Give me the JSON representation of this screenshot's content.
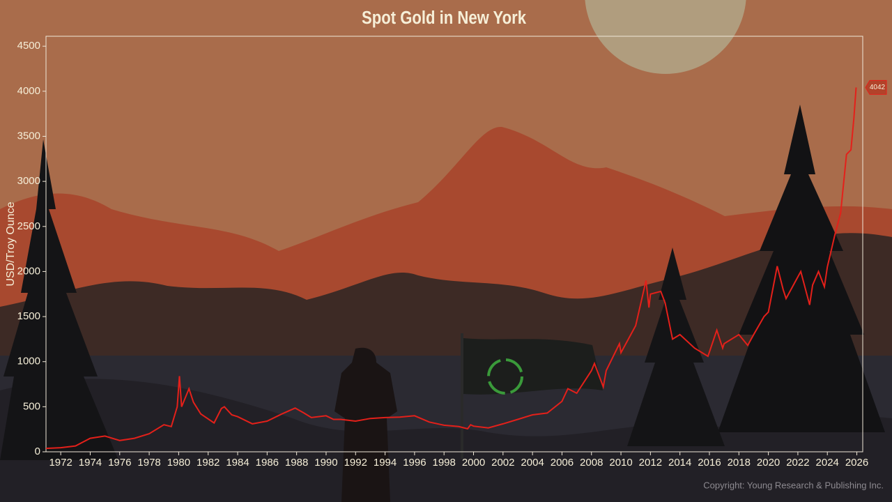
{
  "chart_data": {
    "type": "line",
    "title": "Spot Gold in New York",
    "y_label": "USD/Troy Ounce",
    "copyright": "Copyright: Young Research & Publishing Inc.",
    "x": [
      1971.0,
      1972.0,
      1973.0,
      1974.0,
      1975.0,
      1976.0,
      1977.0,
      1978.0,
      1979.0,
      1979.5,
      1979.9,
      1980.05,
      1980.2,
      1980.7,
      1981.0,
      1981.5,
      1982.4,
      1982.9,
      1983.1,
      1983.6,
      1984.0,
      1985.0,
      1986.0,
      1987.0,
      1987.9,
      1988.5,
      1989.0,
      1990.0,
      1990.5,
      1991.0,
      1992.0,
      1993.0,
      1994.0,
      1995.0,
      1996.0,
      1997.0,
      1998.0,
      1999.0,
      1999.6,
      1999.8,
      2000.0,
      2001.0,
      2002.0,
      2003.0,
      2004.0,
      2005.0,
      2006.0,
      2006.4,
      2007.0,
      2008.0,
      2008.2,
      2008.8,
      2009.0,
      2009.9,
      2010.0,
      2011.0,
      2011.7,
      2011.9,
      2012.0,
      2012.7,
      2013.0,
      2013.5,
      2014.0,
      2015.0,
      2015.9,
      2016.5,
      2016.9,
      2017.0,
      2018.0,
      2018.6,
      2019.0,
      2019.7,
      2020.0,
      2020.6,
      2021.0,
      2021.2,
      2022.2,
      2022.8,
      2023.0,
      2023.4,
      2023.8,
      2024.0,
      2024.5,
      2024.9,
      2025.3,
      2025.6,
      2025.8,
      2025.95
    ],
    "series": [
      {
        "color": "#e4201a",
        "values": [
          38,
          46,
          65,
          150,
          175,
          125,
          150,
          200,
          300,
          280,
          500,
          840,
          500,
          700,
          550,
          420,
          320,
          480,
          500,
          410,
          390,
          310,
          340,
          420,
          485,
          430,
          380,
          400,
          360,
          360,
          340,
          370,
          380,
          385,
          400,
          330,
          295,
          280,
          255,
          300,
          285,
          265,
          310,
          360,
          410,
          430,
          560,
          700,
          650,
          900,
          980,
          720,
          900,
          1200,
          1100,
          1400,
          1900,
          1600,
          1750,
          1780,
          1650,
          1250,
          1300,
          1150,
          1060,
          1350,
          1150,
          1200,
          1300,
          1180,
          1300,
          1500,
          1550,
          2060,
          1800,
          1700,
          2000,
          1630,
          1850,
          2000,
          1830,
          2050,
          2400,
          2650,
          3300,
          3350,
          3700,
          4042
        ]
      }
    ],
    "xlim": [
      1971.0,
      2026.4
    ],
    "ylim": [
      0,
      4610
    ],
    "xticks": [
      1972,
      1974,
      1976,
      1978,
      1980,
      1982,
      1984,
      1986,
      1988,
      1990,
      1992,
      1994,
      1996,
      1998,
      2000,
      2002,
      2004,
      2006,
      2008,
      2010,
      2012,
      2014,
      2016,
      2018,
      2020,
      2022,
      2024,
      2026
    ],
    "yticks": [
      0,
      500,
      1000,
      1500,
      2000,
      2500,
      3000,
      3500,
      4000,
      4500
    ],
    "grid": false
  }
}
